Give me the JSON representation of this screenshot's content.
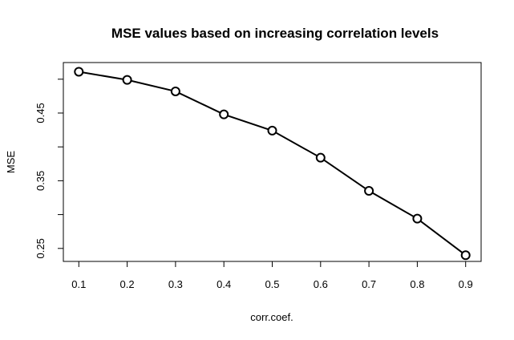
{
  "chart_data": {
    "type": "line",
    "title": "MSE values based on increasing correlation levels",
    "xlabel": "corr.coef.",
    "ylabel": "MSE",
    "x": [
      0.1,
      0.2,
      0.3,
      0.4,
      0.5,
      0.6,
      0.7,
      0.8,
      0.9
    ],
    "series": [
      {
        "values": [
          0.511,
          0.499,
          0.482,
          0.448,
          0.424,
          0.384,
          0.335,
          0.294,
          0.24
        ]
      }
    ],
    "x_ticks": [
      "0.1",
      "0.2",
      "0.3",
      "0.4",
      "0.5",
      "0.6",
      "0.7",
      "0.8",
      "0.9"
    ],
    "y_ticks": [
      "0.25",
      "0.35",
      "0.45"
    ],
    "y_tick_values": [
      0.25,
      0.35,
      0.45
    ],
    "y_minor_ticks": [
      0.3,
      0.4,
      0.5
    ],
    "xlim": [
      0.068,
      0.932
    ],
    "ylim": [
      0.2308,
      0.5246
    ],
    "grid": false,
    "legend": "none",
    "line_color": "#000000",
    "marker": "open-circle"
  }
}
